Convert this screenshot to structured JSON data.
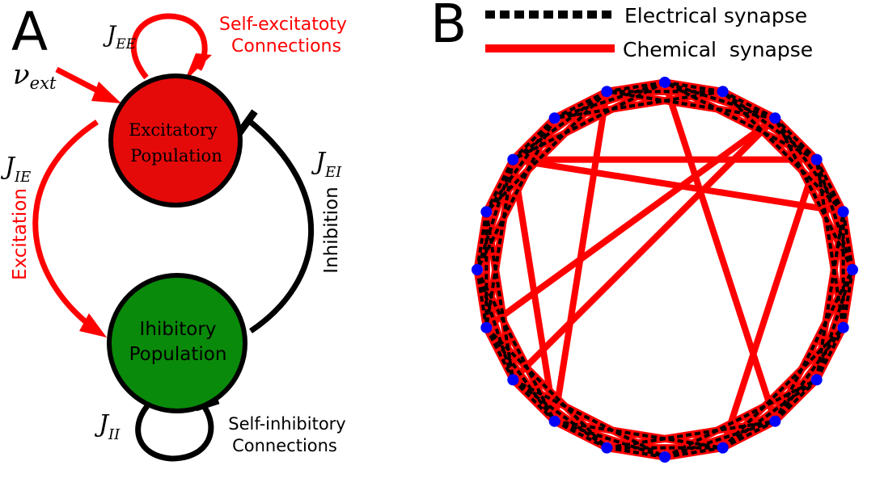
{
  "panel_a": {
    "letter": "A",
    "excitatory_population": {
      "line1": "Excitatory",
      "line2": "Population",
      "fill": "#e50a0a"
    },
    "inhibitory_population": {
      "line1": "Ihibitory",
      "line2": "Population",
      "fill": "#0a8a0a"
    },
    "self_excitatory": {
      "line1": "Self-excitatoty",
      "line2": "Connections",
      "color": "#ff0000"
    },
    "self_inhibitory": {
      "line1": "Self-inhibitory",
      "line2": "Connections",
      "color": "#000000"
    },
    "excitation_label": "Excitation",
    "inhibition_label": "Inhibition",
    "j_ee": {
      "base": "J",
      "sub": "EE"
    },
    "j_ie": {
      "base": "J",
      "sub": "IE"
    },
    "j_ei": {
      "base": "J",
      "sub": "EI"
    },
    "j_ii": {
      "base": "J",
      "sub": "II"
    },
    "nu_ext": {
      "base": "ν",
      "sub": "ext"
    }
  },
  "panel_b": {
    "letter": "B",
    "legend": [
      {
        "label": "Electrical synapse",
        "style": "dashed",
        "color": "#000000"
      },
      {
        "label": "Chemical  synapse",
        "style": "solid",
        "color": "#ff0000"
      }
    ],
    "node_count": 20,
    "node_color": "#0000ff",
    "chemical_color": "#ff0000",
    "electrical_color": "#000000",
    "ring_neighbor_span": 3,
    "long_range_chemical": [
      [
        13,
        6
      ],
      [
        5,
        17
      ],
      [
        17,
        0
      ],
      [
        8,
        13
      ],
      [
        8,
        2
      ],
      [
        12,
        3
      ],
      [
        16,
        2
      ],
      [
        15,
        18
      ],
      [
        11,
        3
      ],
      [
        4,
        1
      ],
      [
        1,
        8
      ]
    ]
  }
}
